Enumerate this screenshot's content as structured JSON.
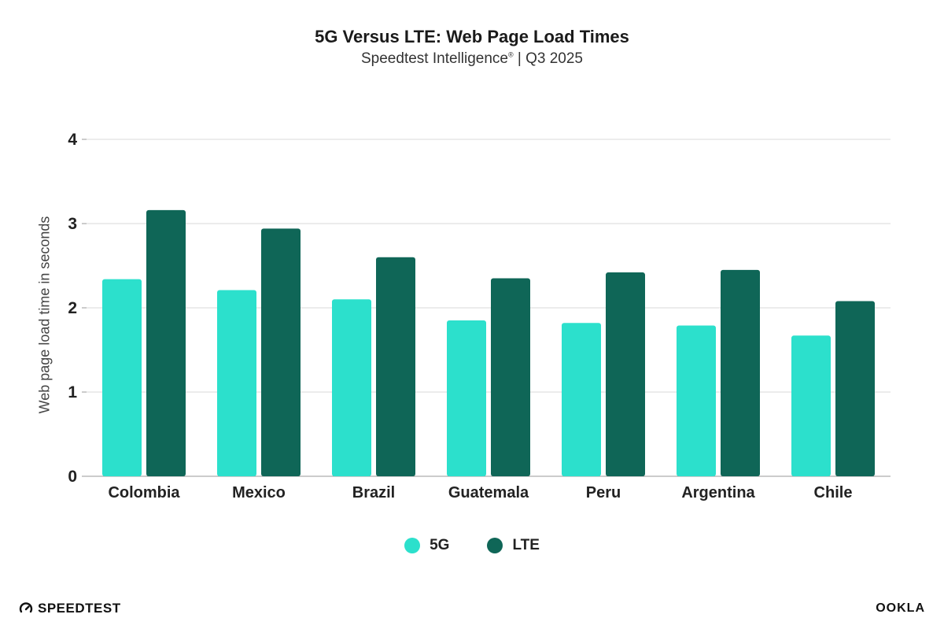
{
  "header": {
    "title": "5G Versus LTE: Web Page Load Times",
    "subtitle_main": "Speedtest Intelligence",
    "subtitle_mark": "®",
    "subtitle_rest": " | Q3 2025"
  },
  "chart_data": {
    "type": "bar",
    "title": "5G Versus LTE: Web Page Load Times",
    "subtitle": "Speedtest Intelligence® | Q3 2025",
    "xlabel": "",
    "ylabel": "Web page load time in seconds",
    "ylim": [
      0,
      4
    ],
    "yticks": [
      0,
      1,
      2,
      3,
      4
    ],
    "grid": true,
    "legend_position": "bottom",
    "categories": [
      "Colombia",
      "Mexico",
      "Brazil",
      "Guatemala",
      "Peru",
      "Argentina",
      "Chile"
    ],
    "series": [
      {
        "name": "5G",
        "color": "#2ce0cc",
        "values": [
          2.34,
          2.21,
          2.1,
          1.85,
          1.82,
          1.79,
          1.67
        ]
      },
      {
        "name": "LTE",
        "color": "#0f6657",
        "values": [
          3.16,
          2.94,
          2.6,
          2.35,
          2.42,
          2.45,
          2.08
        ]
      }
    ]
  },
  "footer": {
    "left_logo_text": "SPEEDTEST",
    "right_logo_text": "OOKLA"
  }
}
